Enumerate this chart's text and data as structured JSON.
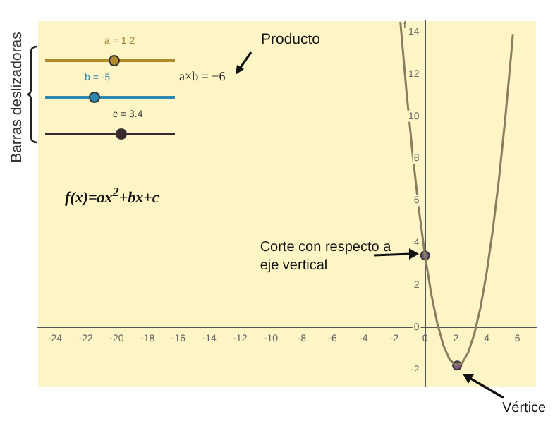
{
  "chart_data": {
    "type": "line",
    "x": [
      -1.6,
      -1.2,
      -0.8,
      -0.4,
      0,
      0.4,
      0.8,
      1.2,
      1.6,
      2,
      2.4,
      2.8,
      3.2,
      3.6,
      4,
      4.4,
      4.8,
      5.2,
      5.6,
      5.7
    ],
    "series": [
      {
        "color": "#8a7d5e",
        "values": [
          14.47,
          11.13,
          8.17,
          5.59,
          3.4,
          1.59,
          0.17,
          -0.87,
          -1.53,
          -1.8,
          -1.69,
          -1.19,
          -0.31,
          0.95,
          2.6,
          4.63,
          7.05,
          9.85,
          13.03,
          13.89
        ]
      },
      {
        "type": "scatter",
        "color": "#7a5a80",
        "x": [
          0,
          2.08
        ],
        "values": [
          3.4,
          -1.81
        ]
      }
    ],
    "xlim": [
      -25.1,
      7.2
    ],
    "ylim": [
      -2.8,
      14.5
    ],
    "xticks": [
      -24,
      -22,
      -20,
      -18,
      -16,
      -14,
      -12,
      -10,
      -8,
      -6,
      -4,
      -2,
      0,
      2,
      4,
      6
    ],
    "yticks": [
      -2,
      0,
      2,
      4,
      6,
      8,
      10,
      12,
      14
    ],
    "grid": false,
    "legend": false,
    "line_style": "solid",
    "annotations": [
      "Barras deslizadoras",
      "a = 1.2",
      "b = -5",
      "c = 3.4",
      "a×b = −6",
      "Producto",
      "f(x)=ax$^{2}$+bx+c",
      {
        "text": "Corte con respecto a eje vertical",
        "x": 0,
        "y": 3.4
      },
      "Vértice",
      "f"
    ]
  }
}
